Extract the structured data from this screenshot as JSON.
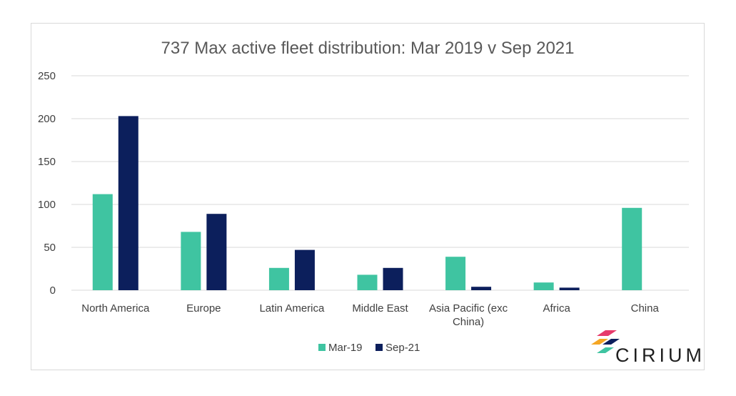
{
  "chart_data": {
    "type": "bar",
    "title": "737 Max active fleet distribution: Mar 2019 v Sep 2021",
    "categories": [
      [
        "North America"
      ],
      [
        "Europe"
      ],
      [
        "Latin America"
      ],
      [
        "Middle East"
      ],
      [
        "Asia Pacific (exc",
        "China)"
      ],
      [
        "Africa"
      ],
      [
        "China"
      ]
    ],
    "series": [
      {
        "name": "Mar-19",
        "color": "#3fc4a1",
        "values": [
          112,
          68,
          26,
          18,
          39,
          9,
          96
        ]
      },
      {
        "name": "Sep-21",
        "color": "#0c1f5c",
        "values": [
          203,
          89,
          47,
          26,
          4,
          3,
          0
        ]
      }
    ],
    "ylim": [
      0,
      250
    ],
    "yticks": [
      0,
      50,
      100,
      150,
      200,
      250
    ],
    "grid": true,
    "legend_position": "bottom"
  },
  "logo": {
    "text": "CIRIUM",
    "colors": [
      "#e63a6b",
      "#f5a623",
      "#3fc4a1",
      "#0c1f5c"
    ]
  }
}
